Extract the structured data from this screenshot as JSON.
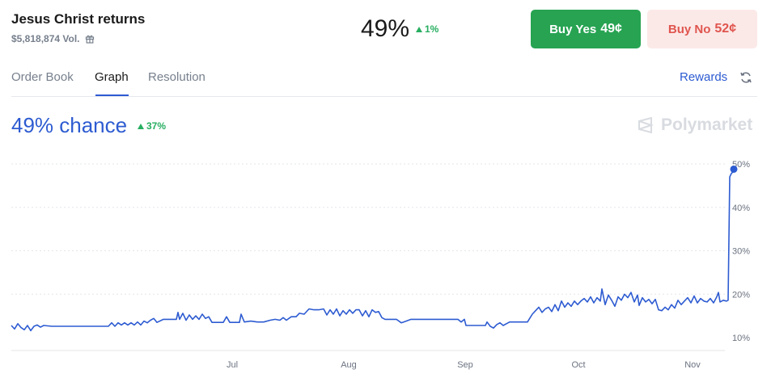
{
  "market": {
    "title": "Jesus Christ returns",
    "volume": "$5,818,874 Vol.",
    "price": "49%",
    "delta": "1%"
  },
  "buttons": {
    "yes_label": "Buy Yes",
    "yes_price": "49¢",
    "no_label": "Buy No",
    "no_price": "52¢"
  },
  "tabs": [
    {
      "label": "Order Book",
      "active": false
    },
    {
      "label": "Graph",
      "active": true
    },
    {
      "label": "Resolution",
      "active": false
    }
  ],
  "rewards_label": "Rewards",
  "chance": {
    "text": "49% chance",
    "delta": "37%"
  },
  "brand": "Polymarket",
  "colors": {
    "accent": "#2d5bd1",
    "up": "#27ae60",
    "yes": "#27a352",
    "no": "#e0554e",
    "no_bg": "#fbe9e8"
  },
  "icons": [
    "gift-icon",
    "up-triangle-icon",
    "refresh-icon",
    "polymarket-logo"
  ],
  "chart_data": {
    "type": "line",
    "title": "",
    "xlabel": "",
    "ylabel": "",
    "y_unit": "%",
    "y_ticks": [
      "10%",
      "20%",
      "30%",
      "40%",
      "50%"
    ],
    "x_ticks": [
      "Jul",
      "Aug",
      "Sep",
      "Oct",
      "Nov"
    ],
    "ylim": [
      9,
      52
    ],
    "grid": true,
    "series": [
      {
        "name": "",
        "points": [
          [
            0,
            12.8
          ],
          [
            4,
            12.0
          ],
          [
            8,
            13.2
          ],
          [
            12,
            12.3
          ],
          [
            16,
            11.8
          ],
          [
            20,
            12.8
          ],
          [
            24,
            11.6
          ],
          [
            28,
            12.6
          ],
          [
            32,
            12.9
          ],
          [
            36,
            12.4
          ],
          [
            40,
            12.8
          ],
          [
            50,
            12.6
          ],
          [
            60,
            12.6
          ],
          [
            70,
            12.6
          ],
          [
            80,
            12.6
          ],
          [
            90,
            12.6
          ],
          [
            100,
            12.6
          ],
          [
            110,
            12.6
          ],
          [
            120,
            12.6
          ],
          [
            124,
            13.4
          ],
          [
            128,
            12.6
          ],
          [
            132,
            13.4
          ],
          [
            136,
            12.9
          ],
          [
            140,
            13.4
          ],
          [
            144,
            12.9
          ],
          [
            148,
            13.4
          ],
          [
            152,
            12.9
          ],
          [
            156,
            13.6
          ],
          [
            160,
            12.9
          ],
          [
            164,
            13.8
          ],
          [
            168,
            13.4
          ],
          [
            172,
            14.0
          ],
          [
            176,
            14.4
          ],
          [
            180,
            13.5
          ],
          [
            188,
            14.2
          ],
          [
            196,
            14.2
          ],
          [
            204,
            14.2
          ],
          [
            206,
            15.8
          ],
          [
            208,
            14.2
          ],
          [
            212,
            15.6
          ],
          [
            216,
            14.0
          ],
          [
            220,
            15.2
          ],
          [
            224,
            14.2
          ],
          [
            228,
            15.0
          ],
          [
            232,
            14.2
          ],
          [
            236,
            15.4
          ],
          [
            240,
            14.4
          ],
          [
            244,
            14.8
          ],
          [
            248,
            13.5
          ],
          [
            256,
            13.5
          ],
          [
            262,
            13.5
          ],
          [
            266,
            14.8
          ],
          [
            270,
            13.5
          ],
          [
            276,
            13.5
          ],
          [
            282,
            13.5
          ],
          [
            284,
            15.4
          ],
          [
            288,
            13.6
          ],
          [
            296,
            13.8
          ],
          [
            304,
            13.6
          ],
          [
            312,
            13.6
          ],
          [
            320,
            14.0
          ],
          [
            326,
            14.2
          ],
          [
            332,
            14.0
          ],
          [
            336,
            14.6
          ],
          [
            340,
            14.0
          ],
          [
            346,
            14.8
          ],
          [
            352,
            14.8
          ],
          [
            356,
            15.6
          ],
          [
            362,
            15.4
          ],
          [
            368,
            16.6
          ],
          [
            374,
            16.4
          ],
          [
            380,
            16.4
          ],
          [
            386,
            16.6
          ],
          [
            390,
            15.2
          ],
          [
            394,
            16.4
          ],
          [
            398,
            15.4
          ],
          [
            402,
            16.6
          ],
          [
            406,
            15.0
          ],
          [
            410,
            16.2
          ],
          [
            414,
            15.4
          ],
          [
            418,
            16.4
          ],
          [
            422,
            15.6
          ],
          [
            426,
            16.4
          ],
          [
            430,
            16.4
          ],
          [
            434,
            15.0
          ],
          [
            438,
            16.2
          ],
          [
            442,
            14.8
          ],
          [
            446,
            16.4
          ],
          [
            450,
            15.8
          ],
          [
            454,
            16.0
          ],
          [
            458,
            14.6
          ],
          [
            462,
            14.2
          ],
          [
            470,
            14.2
          ],
          [
            476,
            14.2
          ],
          [
            482,
            13.4
          ],
          [
            488,
            13.8
          ],
          [
            494,
            14.2
          ],
          [
            500,
            14.2
          ],
          [
            508,
            14.2
          ],
          [
            516,
            14.2
          ],
          [
            524,
            14.2
          ],
          [
            532,
            14.2
          ],
          [
            540,
            14.2
          ],
          [
            548,
            14.2
          ],
          [
            552,
            14.2
          ],
          [
            556,
            13.6
          ],
          [
            560,
            14.2
          ],
          [
            562,
            12.8
          ],
          [
            568,
            12.8
          ],
          [
            574,
            12.8
          ],
          [
            580,
            12.8
          ],
          [
            586,
            12.8
          ],
          [
            588,
            13.6
          ],
          [
            592,
            12.6
          ],
          [
            596,
            12.2
          ],
          [
            600,
            13.0
          ],
          [
            604,
            13.4
          ],
          [
            608,
            12.8
          ],
          [
            612,
            13.2
          ],
          [
            616,
            13.6
          ],
          [
            620,
            13.6
          ],
          [
            626,
            13.6
          ],
          [
            632,
            13.6
          ],
          [
            638,
            13.6
          ],
          [
            640,
            14.2
          ],
          [
            644,
            15.4
          ],
          [
            648,
            16.2
          ],
          [
            652,
            17.0
          ],
          [
            656,
            15.8
          ],
          [
            660,
            16.6
          ],
          [
            664,
            17.0
          ],
          [
            668,
            16.0
          ],
          [
            672,
            17.6
          ],
          [
            676,
            16.2
          ],
          [
            680,
            18.4
          ],
          [
            684,
            17.0
          ],
          [
            688,
            18.0
          ],
          [
            692,
            17.2
          ],
          [
            696,
            18.4
          ],
          [
            700,
            17.6
          ],
          [
            704,
            18.4
          ],
          [
            708,
            19.0
          ],
          [
            712,
            18.2
          ],
          [
            716,
            19.4
          ],
          [
            720,
            18.0
          ],
          [
            724,
            19.2
          ],
          [
            728,
            18.4
          ],
          [
            730,
            21.2
          ],
          [
            734,
            17.6
          ],
          [
            738,
            19.8
          ],
          [
            742,
            18.6
          ],
          [
            746,
            17.2
          ],
          [
            750,
            19.4
          ],
          [
            754,
            18.6
          ],
          [
            758,
            20.0
          ],
          [
            762,
            19.2
          ],
          [
            766,
            20.4
          ],
          [
            770,
            18.2
          ],
          [
            774,
            19.8
          ],
          [
            776,
            17.4
          ],
          [
            780,
            19.2
          ],
          [
            784,
            18.2
          ],
          [
            788,
            18.8
          ],
          [
            792,
            17.8
          ],
          [
            796,
            18.8
          ],
          [
            800,
            16.4
          ],
          [
            804,
            16.2
          ],
          [
            808,
            17.0
          ],
          [
            812,
            16.4
          ],
          [
            816,
            17.6
          ],
          [
            820,
            16.8
          ],
          [
            824,
            18.6
          ],
          [
            828,
            17.6
          ],
          [
            832,
            18.4
          ],
          [
            836,
            19.2
          ],
          [
            840,
            18.0
          ],
          [
            844,
            19.6
          ],
          [
            848,
            18.0
          ],
          [
            852,
            19.0
          ],
          [
            856,
            18.4
          ],
          [
            860,
            18.2
          ],
          [
            864,
            19.0
          ],
          [
            868,
            18.0
          ],
          [
            872,
            19.4
          ],
          [
            874,
            20.4
          ],
          [
            876,
            18.2
          ],
          [
            880,
            18.6
          ],
          [
            884,
            18.4
          ],
          [
            886,
            18.6
          ],
          [
            888,
            47.0
          ],
          [
            890,
            47.8
          ],
          [
            892,
            48.2
          ],
          [
            893,
            48.8
          ]
        ]
      }
    ],
    "x_tick_positions": [
      287,
      431,
      575,
      715,
      856
    ],
    "x_range": [
      0,
      900
    ]
  }
}
